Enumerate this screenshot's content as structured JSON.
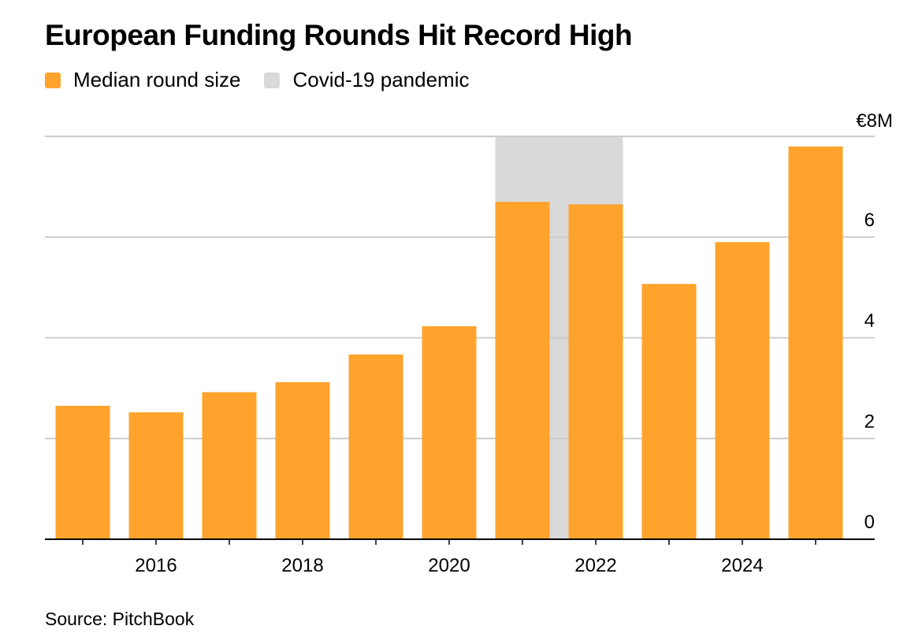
{
  "title": "European Funding Rounds Hit Record High",
  "legend": [
    {
      "label": "Median round size",
      "color": "#ffa32c"
    },
    {
      "label": "Covid-19 pandemic",
      "color": "#d9d9d9"
    }
  ],
  "source": "Source: PitchBook",
  "chart_data": {
    "type": "bar",
    "title": "European Funding Rounds Hit Record High",
    "categories": [
      "2015",
      "2016",
      "2017",
      "2018",
      "2019",
      "2020",
      "2021",
      "2022",
      "2023",
      "2024",
      "2025"
    ],
    "series": [
      {
        "name": "Median round size",
        "values": [
          2.65,
          2.52,
          2.92,
          3.12,
          3.67,
          4.23,
          6.7,
          6.65,
          5.07,
          5.9,
          7.8
        ]
      }
    ],
    "x_tick_labels": [
      "2016",
      "2018",
      "2020",
      "2022",
      "2024"
    ],
    "y_ticks": [
      0,
      2,
      4,
      6,
      8
    ],
    "y_tick_labels": [
      "0",
      "2",
      "4",
      "6",
      "€8M"
    ],
    "ylim": [
      0,
      8
    ],
    "y_axis_side": "right",
    "shaded_region": {
      "label": "Covid-19 pandemic",
      "from": "2021",
      "to": "2022"
    },
    "xlabel": "",
    "ylabel": "",
    "grid": true,
    "legend_position": "top-left",
    "colors": {
      "bar": "#ffa32c",
      "shade": "#d9d9d9",
      "grid": "#cccccc",
      "axis": "#000000"
    }
  }
}
